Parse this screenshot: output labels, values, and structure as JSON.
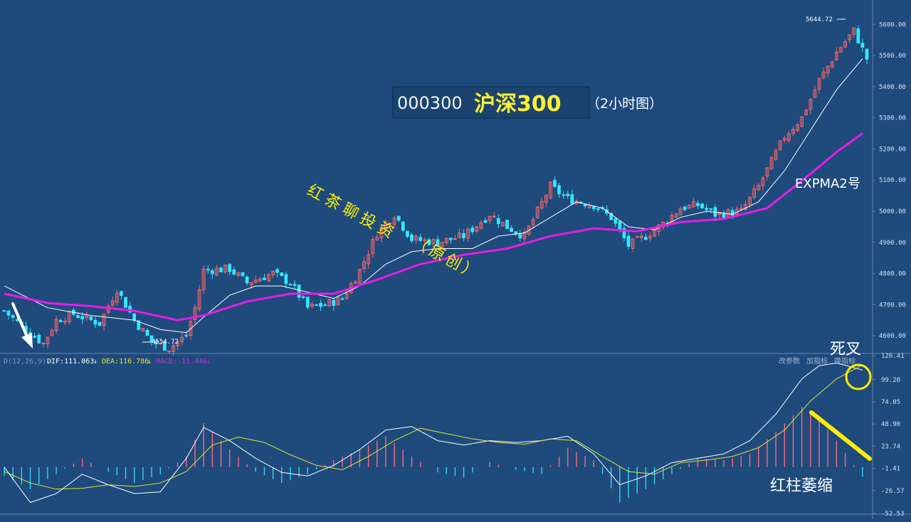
{
  "title": {
    "code": "000300",
    "name": "沪深300",
    "period": "（2小时图）"
  },
  "annotations": {
    "watermark_line1": "红茶聊投资",
    "watermark_line2": "（原创）",
    "expma_label": "EXPMA2号",
    "death_cross": "死叉",
    "red_bars_shrink": "红柱萎缩",
    "high_label": "5644.72",
    "low_label": "4554.72"
  },
  "macd_header": {
    "params": "D(12,26,9)",
    "dif": "DIF:111.063",
    "dea": "DEA:116.786",
    "macd": "MACD:-11.446",
    "arrow": "↓"
  },
  "toolbar": {
    "params_label": "改参数",
    "add_indicator_label": "加指标",
    "switch_indicator_label": "换指标"
  },
  "colors": {
    "background": "#1e4a7c",
    "up_candle": "#ff6666",
    "down_candle": "#33e6ff",
    "expma_long": "#e61ee6",
    "expma_short": "#ffffff",
    "dif": "#ffffff",
    "dea": "#e6e633",
    "macd_pos": "#ff6680",
    "macd_neg": "#33d6ff",
    "annotation_yellow": "#ffee00",
    "grid": "#6a86aa"
  },
  "chart_data": [
    {
      "type": "candlestick",
      "ylim": [
        4550,
        5660
      ],
      "y_ticks": [
        "5600.00",
        "5500.00",
        "5400.00",
        "5300.00",
        "5200.00",
        "5100.00",
        "5000.00",
        "4900.00",
        "4800.00",
        "4700.00",
        "4600.00"
      ],
      "y_tick_values": [
        5600,
        5500,
        5400,
        5300,
        5200,
        5100,
        5000,
        4900,
        4800,
        4700,
        4600
      ],
      "grid": false,
      "close_path": [
        [
          0,
          4680
        ],
        [
          5,
          4620
        ],
        [
          9,
          4575
        ],
        [
          12,
          4650
        ],
        [
          16,
          4670
        ],
        [
          22,
          4640
        ],
        [
          26,
          4750
        ],
        [
          30,
          4650
        ],
        [
          34,
          4580
        ],
        [
          38,
          4560
        ],
        [
          42,
          4600
        ],
        [
          44,
          4690
        ],
        [
          46,
          4810
        ],
        [
          52,
          4815
        ],
        [
          56,
          4770
        ],
        [
          62,
          4800
        ],
        [
          66,
          4770
        ],
        [
          70,
          4690
        ],
        [
          74,
          4700
        ],
        [
          78,
          4720
        ],
        [
          82,
          4810
        ],
        [
          86,
          4930
        ],
        [
          90,
          4990
        ],
        [
          94,
          4910
        ],
        [
          100,
          4900
        ],
        [
          106,
          4920
        ],
        [
          112,
          4990
        ],
        [
          116,
          4950
        ],
        [
          120,
          4920
        ],
        [
          126,
          5080
        ],
        [
          130,
          5040
        ],
        [
          136,
          5020
        ],
        [
          140,
          4980
        ],
        [
          144,
          4890
        ],
        [
          148,
          4920
        ],
        [
          152,
          4960
        ],
        [
          156,
          5010
        ],
        [
          160,
          5020
        ],
        [
          164,
          4990
        ],
        [
          170,
          5000
        ],
        [
          174,
          5080
        ],
        [
          180,
          5240
        ],
        [
          184,
          5300
        ],
        [
          188,
          5420
        ],
        [
          192,
          5510
        ],
        [
          196,
          5580
        ],
        [
          199,
          5490
        ]
      ],
      "series": [
        {
          "name": "EXPMA short",
          "values": [
            [
              0,
              4760
            ],
            [
              10,
              4690
            ],
            [
              20,
              4665
            ],
            [
              30,
              4650
            ],
            [
              36,
              4620
            ],
            [
              42,
              4610
            ],
            [
              46,
              4660
            ],
            [
              52,
              4730
            ],
            [
              58,
              4760
            ],
            [
              64,
              4760
            ],
            [
              70,
              4740
            ],
            [
              76,
              4720
            ],
            [
              82,
              4760
            ],
            [
              88,
              4830
            ],
            [
              94,
              4870
            ],
            [
              100,
              4880
            ],
            [
              108,
              4880
            ],
            [
              114,
              4920
            ],
            [
              120,
              4930
            ],
            [
              126,
              4980
            ],
            [
              132,
              5030
            ],
            [
              138,
              5010
            ],
            [
              144,
              4950
            ],
            [
              150,
              4940
            ],
            [
              156,
              4980
            ],
            [
              162,
              5000
            ],
            [
              168,
              4990
            ],
            [
              174,
              5030
            ],
            [
              180,
              5130
            ],
            [
              186,
              5260
            ],
            [
              192,
              5390
            ],
            [
              198,
              5490
            ]
          ]
        },
        {
          "name": "EXPMA long",
          "values": [
            [
              0,
              4735
            ],
            [
              10,
              4705
            ],
            [
              20,
              4695
            ],
            [
              30,
              4680
            ],
            [
              40,
              4650
            ],
            [
              46,
              4665
            ],
            [
              56,
              4710
            ],
            [
              66,
              4735
            ],
            [
              76,
              4735
            ],
            [
              86,
              4780
            ],
            [
              96,
              4830
            ],
            [
              106,
              4860
            ],
            [
              116,
              4880
            ],
            [
              126,
              4920
            ],
            [
              136,
              4945
            ],
            [
              146,
              4935
            ],
            [
              156,
              4965
            ],
            [
              166,
              4975
            ],
            [
              176,
              5010
            ],
            [
              186,
              5120
            ],
            [
              192,
              5190
            ],
            [
              198,
              5250
            ]
          ]
        }
      ]
    },
    {
      "type": "macd",
      "ylim": [
        -52.53,
        126.41
      ],
      "y_ticks": [
        "126.41",
        "99.20",
        "74.05",
        "48.90",
        "23.74",
        "-1.41",
        "-26.57",
        "-52.53"
      ],
      "y_tick_values": [
        126.41,
        99.2,
        74.05,
        48.9,
        23.74,
        -1.41,
        -26.57,
        -52.53
      ],
      "dif": [
        [
          0,
          0
        ],
        [
          6,
          -40
        ],
        [
          12,
          -30
        ],
        [
          18,
          -8
        ],
        [
          24,
          -20
        ],
        [
          30,
          -30
        ],
        [
          36,
          -28
        ],
        [
          42,
          10
        ],
        [
          46,
          45
        ],
        [
          52,
          30
        ],
        [
          58,
          10
        ],
        [
          64,
          -6
        ],
        [
          70,
          -10
        ],
        [
          76,
          2
        ],
        [
          82,
          20
        ],
        [
          88,
          42
        ],
        [
          94,
          46
        ],
        [
          100,
          30
        ],
        [
          106,
          25
        ],
        [
          112,
          30
        ],
        [
          118,
          28
        ],
        [
          124,
          30
        ],
        [
          130,
          35
        ],
        [
          136,
          15
        ],
        [
          142,
          -20
        ],
        [
          148,
          -10
        ],
        [
          154,
          5
        ],
        [
          160,
          10
        ],
        [
          166,
          15
        ],
        [
          172,
          30
        ],
        [
          178,
          60
        ],
        [
          184,
          100
        ],
        [
          188,
          115
        ],
        [
          192,
          118
        ],
        [
          198,
          110
        ]
      ],
      "dea": [
        [
          0,
          -5
        ],
        [
          6,
          -18
        ],
        [
          12,
          -25
        ],
        [
          18,
          -24
        ],
        [
          24,
          -20
        ],
        [
          30,
          -22
        ],
        [
          36,
          -18
        ],
        [
          42,
          -5
        ],
        [
          48,
          25
        ],
        [
          54,
          34
        ],
        [
          60,
          28
        ],
        [
          66,
          14
        ],
        [
          72,
          2
        ],
        [
          78,
          -3
        ],
        [
          84,
          12
        ],
        [
          90,
          30
        ],
        [
          96,
          44
        ],
        [
          102,
          38
        ],
        [
          108,
          32
        ],
        [
          114,
          28
        ],
        [
          120,
          26
        ],
        [
          126,
          32
        ],
        [
          132,
          30
        ],
        [
          138,
          12
        ],
        [
          144,
          -5
        ],
        [
          150,
          -8
        ],
        [
          156,
          5
        ],
        [
          162,
          8
        ],
        [
          168,
          12
        ],
        [
          174,
          22
        ],
        [
          180,
          42
        ],
        [
          186,
          75
        ],
        [
          192,
          100
        ],
        [
          198,
          116
        ]
      ],
      "hist": [
        [
          0,
          -10
        ],
        [
          6,
          -25
        ],
        [
          12,
          -8
        ],
        [
          18,
          10
        ],
        [
          24,
          -5
        ],
        [
          30,
          -18
        ],
        [
          36,
          -8
        ],
        [
          42,
          12
        ],
        [
          46,
          50
        ],
        [
          52,
          20
        ],
        [
          58,
          -5
        ],
        [
          64,
          -18
        ],
        [
          70,
          -8
        ],
        [
          76,
          8
        ],
        [
          82,
          20
        ],
        [
          88,
          35
        ],
        [
          94,
          12
        ],
        [
          100,
          -6
        ],
        [
          106,
          -12
        ],
        [
          112,
          6
        ],
        [
          118,
          -3
        ],
        [
          124,
          -8
        ],
        [
          130,
          22
        ],
        [
          136,
          8
        ],
        [
          142,
          -40
        ],
        [
          148,
          -25
        ],
        [
          154,
          -8
        ],
        [
          160,
          10
        ],
        [
          166,
          8
        ],
        [
          172,
          15
        ],
        [
          178,
          40
        ],
        [
          184,
          68
        ],
        [
          188,
          55
        ],
        [
          192,
          30
        ],
        [
          198,
          -11
        ]
      ]
    }
  ]
}
